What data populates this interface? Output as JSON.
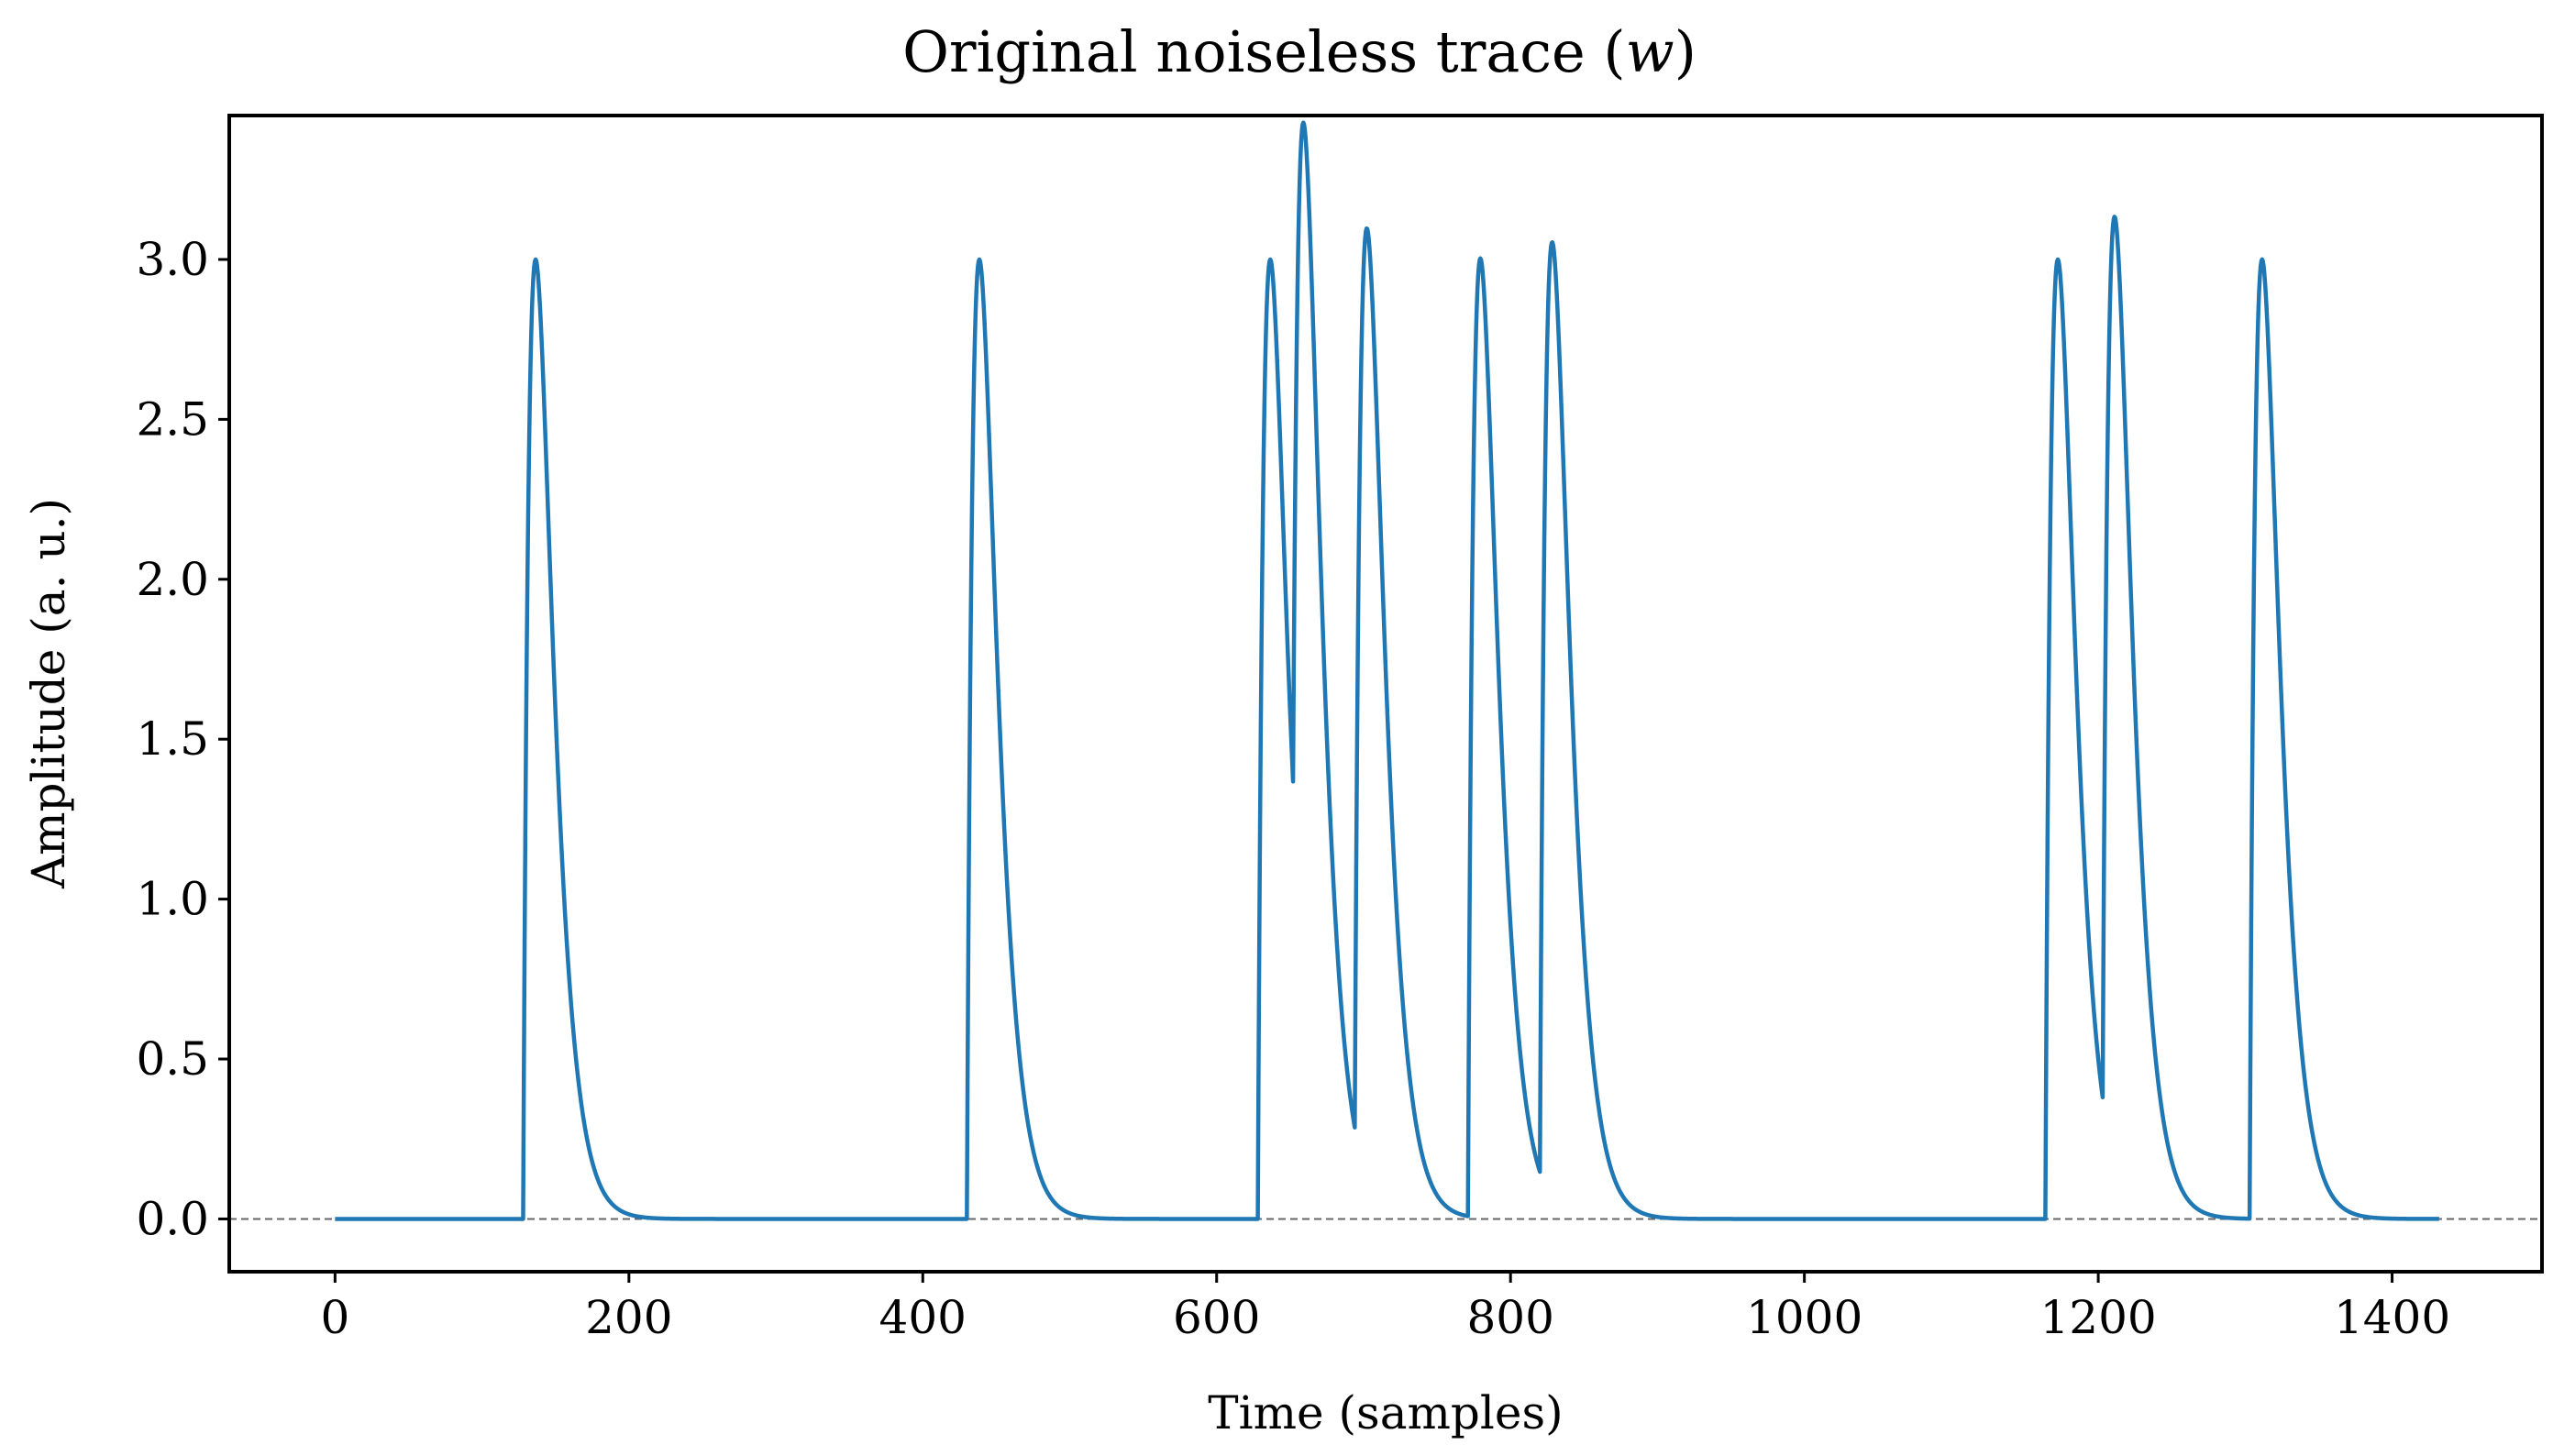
{
  "chart_data": {
    "type": "line",
    "title": "Original noiseless trace (",
    "title_var": "w",
    "title_end": ")",
    "xlabel": "Time (samples)",
    "ylabel": "Amplitude (a. u.)",
    "xlim": [
      -72,
      1502
    ],
    "ylim": [
      -0.165,
      3.45
    ],
    "xticks": [
      0,
      200,
      400,
      600,
      800,
      1000,
      1200,
      1400
    ],
    "yticks": [
      0.0,
      0.5,
      1.0,
      1.5,
      2.0,
      2.5,
      3.0
    ],
    "ytick_labels": [
      "0.0",
      "0.5",
      "1.0",
      "1.5",
      "2.0",
      "2.5",
      "3.0"
    ],
    "grid": false,
    "baseline": 0.0,
    "x_range": [
      0,
      1432
    ],
    "events": [
      {
        "onset": 128,
        "amplitude": 3.0
      },
      {
        "onset": 430,
        "amplitude": 3.0
      },
      {
        "onset": 628,
        "amplitude": 3.0
      },
      {
        "onset": 652,
        "amplitude": 2.7
      },
      {
        "onset": 694,
        "amplitude": 2.97
      },
      {
        "onset": 771,
        "amplitude": 3.0
      },
      {
        "onset": 820,
        "amplitude": 2.99
      },
      {
        "onset": 1164,
        "amplitude": 3.0
      },
      {
        "onset": 1203,
        "amplitude": 2.96
      },
      {
        "onset": 1303,
        "amplitude": 3.0
      }
    ],
    "series": [
      {
        "color": "#1f77b4"
      }
    ],
    "baseline_color": "#666666"
  }
}
